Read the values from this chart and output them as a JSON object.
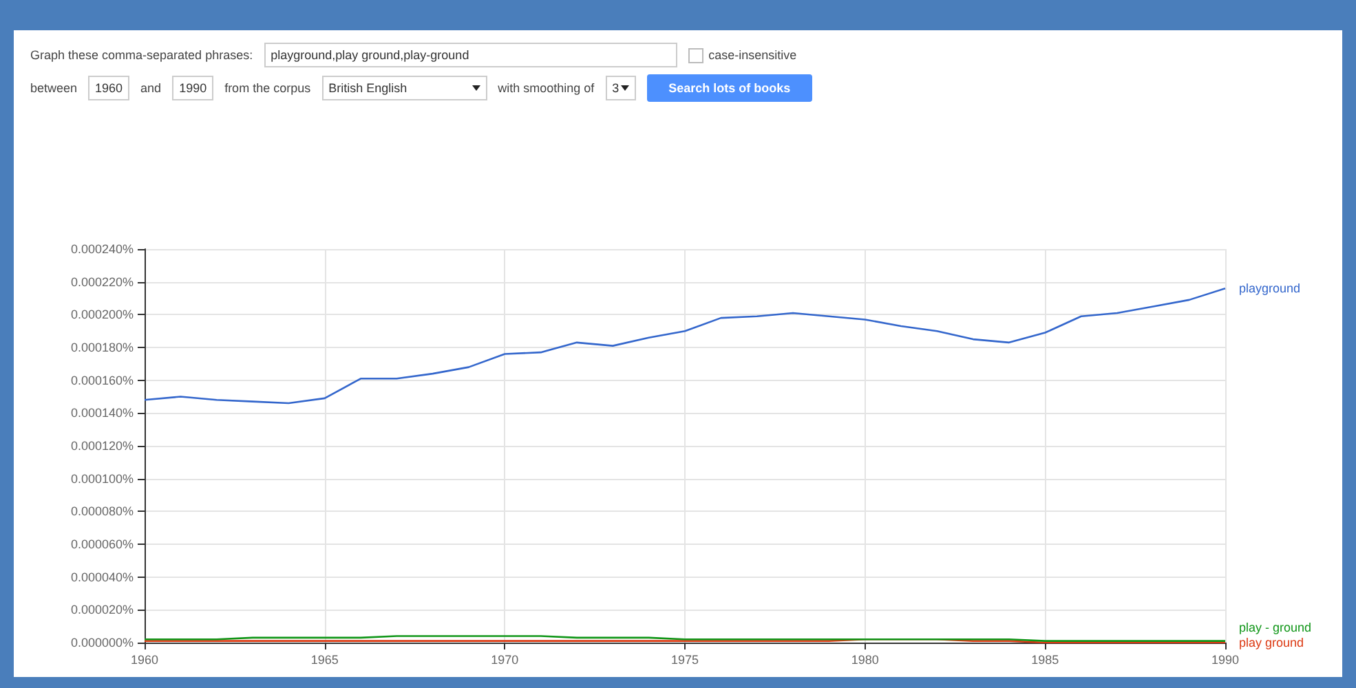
{
  "chart_data": {
    "type": "line",
    "annotations": [
      "Graph these comma-separated phrases:",
      "playground,play ground,play-ground",
      "case-insensitive",
      "between",
      "1960",
      "and",
      "1990",
      "from the corpus",
      "British English",
      "with smoothing of",
      "3",
      "Search lots of books"
    ],
    "x": [
      1960,
      1961,
      1962,
      1963,
      1964,
      1965,
      1966,
      1967,
      1968,
      1969,
      1970,
      1971,
      1972,
      1973,
      1974,
      1975,
      1976,
      1977,
      1978,
      1979,
      1980,
      1981,
      1982,
      1983,
      1984,
      1985,
      1986,
      1987,
      1988,
      1989,
      1990
    ],
    "series": [
      {
        "name": "playground",
        "color": "#3366cc",
        "values": [
          0.000148,
          0.00015,
          0.000148,
          0.000147,
          0.000146,
          0.000149,
          0.000161,
          0.000161,
          0.000164,
          0.000168,
          0.000176,
          0.000177,
          0.000183,
          0.000181,
          0.000186,
          0.00019,
          0.000198,
          0.000199,
          0.000201,
          0.000199,
          0.000197,
          0.000193,
          0.00019,
          0.000185,
          0.000183,
          0.000189,
          0.000199,
          0.000201,
          0.000205,
          0.000209,
          0.000216
        ]
      },
      {
        "name": "play ground",
        "color": "#dc3912",
        "values": [
          1e-06,
          1e-06,
          1e-06,
          1e-06,
          1e-06,
          1e-06,
          1e-06,
          1e-06,
          1e-06,
          1e-06,
          1e-06,
          1e-06,
          1e-06,
          1e-06,
          1e-06,
          1e-06,
          1e-06,
          1e-06,
          1e-06,
          1e-06,
          2e-06,
          2e-06,
          2e-06,
          1e-06,
          1e-06,
          0,
          0,
          0,
          0,
          0,
          0
        ]
      },
      {
        "name": "play - ground",
        "color": "#109618",
        "values": [
          2e-06,
          2e-06,
          2e-06,
          3e-06,
          3e-06,
          3e-06,
          3e-06,
          4e-06,
          4e-06,
          4e-06,
          4e-06,
          4e-06,
          3e-06,
          3e-06,
          3e-06,
          2e-06,
          2e-06,
          2e-06,
          2e-06,
          2e-06,
          2e-06,
          2e-06,
          2e-06,
          2e-06,
          2e-06,
          1e-06,
          1e-06,
          1e-06,
          1e-06,
          1e-06,
          1e-06
        ]
      }
    ],
    "xlim": [
      1960,
      1990
    ],
    "xticks": [
      1960,
      1965,
      1970,
      1975,
      1980,
      1985,
      1990
    ],
    "ylim": [
      0,
      0.00024
    ],
    "yticks": [
      {
        "value": 0,
        "label": "0.000000%"
      },
      {
        "value": 2e-05,
        "label": "0.000020%"
      },
      {
        "value": 4e-05,
        "label": "0.000040%"
      },
      {
        "value": 6e-05,
        "label": "0.000060%"
      },
      {
        "value": 8e-05,
        "label": "0.000080%"
      },
      {
        "value": 0.0001,
        "label": "0.000100%"
      },
      {
        "value": 0.00012,
        "label": "0.000120%"
      },
      {
        "value": 0.00014,
        "label": "0.000140%"
      },
      {
        "value": 0.00016,
        "label": "0.000160%"
      },
      {
        "value": 0.00018,
        "label": "0.000180%"
      },
      {
        "value": 0.0002,
        "label": "0.000200%"
      },
      {
        "value": 0.00022,
        "label": "0.000220%"
      },
      {
        "value": 0.00024,
        "label": "0.000240%"
      }
    ],
    "grid": true,
    "legend": false
  }
}
